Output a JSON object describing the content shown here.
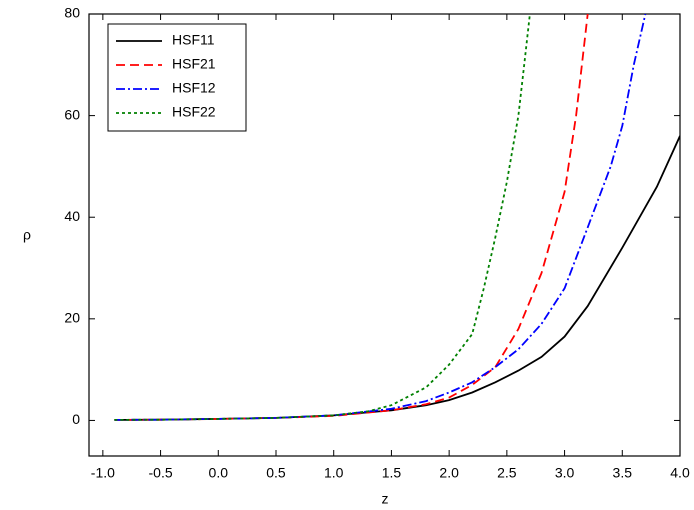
{
  "chart_data": {
    "type": "line",
    "x_label": "z",
    "y_label": "ρ",
    "xlim": [
      -1.12,
      4.0
    ],
    "ylim": [
      -7,
      80
    ],
    "xticks": [
      {
        "value": -1,
        "label": "-1.0"
      },
      -0.5,
      {
        "value": 0,
        "label": "0.0"
      },
      0.5,
      {
        "value": 1,
        "label": "1.0"
      },
      1.5,
      {
        "value": 2,
        "label": "2.0"
      },
      2.5,
      {
        "value": 3,
        "label": "3.0"
      },
      3.5,
      {
        "value": 4,
        "label": "4.0"
      }
    ],
    "yticks": [
      0,
      20,
      40,
      60,
      80
    ],
    "legend": "upper left",
    "series": [
      {
        "name": "HSF11",
        "color": "#000000",
        "dash": "solid",
        "x": [
          -0.9,
          -0.5,
          0,
          0.5,
          1.0,
          1.5,
          1.8,
          2.0,
          2.2,
          2.4,
          2.6,
          2.8,
          3.0,
          3.2,
          3.5,
          3.8,
          4.0
        ],
        "values": [
          0.1,
          0.15,
          0.3,
          0.5,
          1.0,
          2.0,
          3.0,
          4.0,
          5.5,
          7.5,
          9.8,
          12.5,
          16.5,
          22.5,
          34,
          46,
          56
        ]
      },
      {
        "name": "HSF21",
        "color": "#ff0000",
        "dash": "dash",
        "x": [
          -0.9,
          -0.5,
          0,
          0.5,
          1.0,
          1.5,
          1.8,
          2.0,
          2.2,
          2.4,
          2.6,
          2.8,
          3.0,
          3.1,
          3.2
        ],
        "values": [
          0.1,
          0.15,
          0.3,
          0.5,
          0.9,
          2.0,
          3.2,
          4.5,
          7.0,
          10.5,
          18,
          29,
          45,
          60,
          80
        ]
      },
      {
        "name": "HSF12",
        "color": "#0000ff",
        "dash": "dashdot",
        "x": [
          -0.9,
          -0.5,
          0,
          0.5,
          1.0,
          1.5,
          1.8,
          2.0,
          2.2,
          2.4,
          2.6,
          2.8,
          3.0,
          3.2,
          3.4,
          3.5,
          3.6,
          3.7
        ],
        "values": [
          0.1,
          0.15,
          0.3,
          0.5,
          1.0,
          2.3,
          3.8,
          5.5,
          7.5,
          10.5,
          14,
          19,
          26,
          38,
          50,
          58,
          70,
          80
        ]
      },
      {
        "name": "HSF22",
        "color": "#008000",
        "dash": "dot",
        "x": [
          -0.9,
          -0.5,
          0,
          0.5,
          1.0,
          1.3,
          1.5,
          1.8,
          2.0,
          2.2,
          2.3,
          2.4,
          2.5,
          2.6,
          2.65,
          2.7
        ],
        "values": [
          0.1,
          0.15,
          0.3,
          0.5,
          1.0,
          1.8,
          3.0,
          6.5,
          11,
          17,
          26,
          36,
          47,
          60,
          70,
          80
        ]
      }
    ]
  }
}
